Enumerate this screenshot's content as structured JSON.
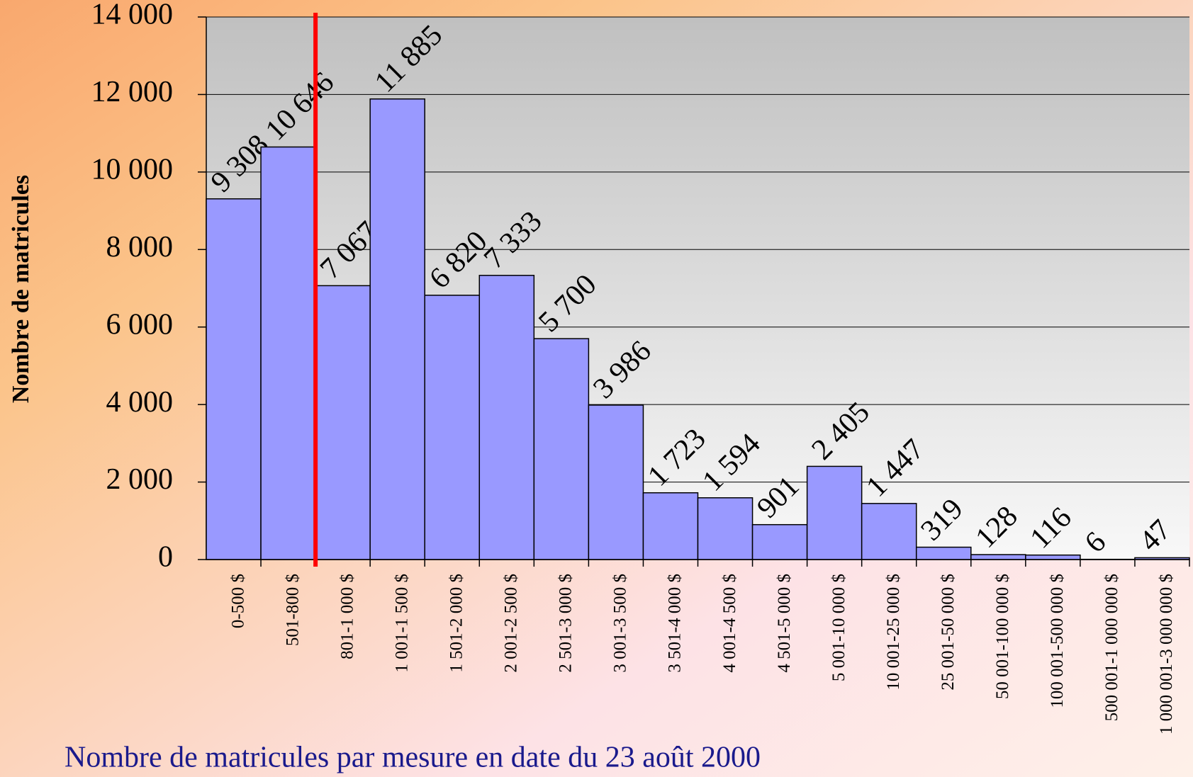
{
  "chart_data": {
    "type": "bar",
    "title": "Nombre de matricules par mesure en date du 23 août 2000",
    "y_label": "Nombre de matricules",
    "categories": [
      "0-500 $",
      "501-800 $",
      "801-1 000 $",
      "1 001-1 500 $",
      "1 501-2 000 $",
      "2 001-2 500 $",
      "2 501-3 000 $",
      "3 001-3 500 $",
      "3 501-4 000 $",
      "4 001-4 500 $",
      "4 501-5 000 $",
      "5 001-10 000 $",
      "10 001-25 000 $",
      "25 001-50 000 $",
      "50 001-100 000 $",
      "100 001-500 000 $",
      "500 001-1 000 000 $",
      "1 000 001-3 000 000 $"
    ],
    "values": [
      9308,
      10646,
      7067,
      11885,
      6820,
      7333,
      5700,
      3986,
      1723,
      1594,
      901,
      2405,
      1447,
      319,
      128,
      116,
      6,
      47
    ],
    "value_labels": [
      "9 308",
      "10 646",
      "7 067",
      "11 885",
      "6 820",
      "7 333",
      "5 700",
      "3 986",
      "1 723",
      "1 594",
      "901",
      "2 405",
      "1 447",
      "319",
      "128",
      "116",
      "6",
      "47"
    ],
    "color": "#9999ff",
    "ylim": [
      0,
      14000
    ],
    "yticks": [
      0,
      {
        "value": 2000,
        "label": "2 000"
      },
      {
        "value": 4000,
        "label": "4 000"
      },
      {
        "value": 6000,
        "label": "6 000"
      },
      {
        "value": 8000,
        "label": "8 000"
      },
      {
        "value": 10000,
        "label": "10 000"
      },
      {
        "value": 12000,
        "label": "12 000"
      },
      {
        "value": 14000,
        "label": "14 000"
      }
    ],
    "grid": true
  }
}
